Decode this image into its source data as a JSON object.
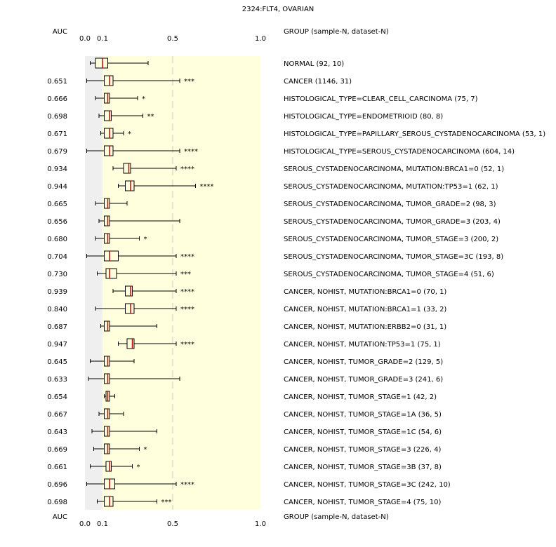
{
  "colors": {
    "background_low": "#efefef",
    "background_high": "#ffffdd",
    "box_fill": "#ffffdd",
    "median": "#cc0000",
    "significant_text": "#cc0000",
    "weak_text": "#993333",
    "normal_text": "#000000",
    "guide_line": "#c8c8c8"
  },
  "chart_data": {
    "type": "box",
    "title": "2324:FLT4, OVARIAN",
    "auc_header": "AUC",
    "group_header": "GROUP (sample-N, dataset-N)",
    "x_ticks": [
      {
        "value": 0.0,
        "label": "0.0"
      },
      {
        "value": 0.1,
        "label": "0.1"
      },
      {
        "value": 0.5,
        "label": "0.5"
      },
      {
        "value": 1.0,
        "label": "1.0"
      }
    ],
    "xlim": [
      0,
      1
    ],
    "shaded_split": 0.1,
    "guide_value": 0.5,
    "rows": [
      {
        "label": "NORMAL (92, 10)",
        "auc": "",
        "stars": "",
        "style": "normal",
        "whisker_low": 0.03,
        "q1": 0.06,
        "median": 0.1,
        "q3": 0.13,
        "whisker_high": 0.36
      },
      {
        "label": "CANCER (1146, 31)",
        "auc": "0.651",
        "stars": "***",
        "style": "sig",
        "whisker_low": 0.01,
        "q1": 0.11,
        "median": 0.14,
        "q3": 0.16,
        "whisker_high": 0.54
      },
      {
        "label": "HISTOLOGICAL_TYPE=CLEAR_CELL_CARCINOMA (75, 7)",
        "auc": "0.666",
        "stars": "*",
        "style": "weak",
        "whisker_low": 0.06,
        "q1": 0.11,
        "median": 0.13,
        "q3": 0.14,
        "whisker_high": 0.3
      },
      {
        "label": "HISTOLOGICAL_TYPE=ENDOMETRIOID (80, 8)",
        "auc": "0.698",
        "stars": "**",
        "style": "weak",
        "whisker_low": 0.08,
        "q1": 0.11,
        "median": 0.14,
        "q3": 0.15,
        "whisker_high": 0.33
      },
      {
        "label": "HISTOLOGICAL_TYPE=PAPILLARY_SEROUS_CYSTADENOCARCINOMA (53, 1)",
        "auc": "0.671",
        "stars": "*",
        "style": "weak",
        "whisker_low": 0.09,
        "q1": 0.11,
        "median": 0.14,
        "q3": 0.16,
        "whisker_high": 0.22
      },
      {
        "label": "HISTOLOGICAL_TYPE=SEROUS_CYSTADENOCARCINOMA (604, 14)",
        "auc": "0.679",
        "stars": "****",
        "style": "sig",
        "whisker_low": 0.01,
        "q1": 0.11,
        "median": 0.14,
        "q3": 0.16,
        "whisker_high": 0.54
      },
      {
        "label": "SEROUS_CYSTADENOCARCINOMA, MUTATION:BRCA1=0 (52, 1)",
        "auc": "0.934",
        "stars": "****",
        "style": "sig",
        "whisker_low": 0.16,
        "q1": 0.22,
        "median": 0.25,
        "q3": 0.26,
        "whisker_high": 0.52
      },
      {
        "label": "SEROUS_CYSTADENOCARCINOMA, MUTATION:TP53=1 (62, 1)",
        "auc": "0.944",
        "stars": "****",
        "style": "sig",
        "whisker_low": 0.19,
        "q1": 0.23,
        "median": 0.26,
        "q3": 0.28,
        "whisker_high": 0.63
      },
      {
        "label": "SEROUS_CYSTADENOCARCINOMA, TUMOR_GRADE=2 (98, 3)",
        "auc": "0.665",
        "stars": "",
        "style": "normal",
        "whisker_low": 0.06,
        "q1": 0.11,
        "median": 0.13,
        "q3": 0.14,
        "whisker_high": 0.24
      },
      {
        "label": "SEROUS_CYSTADENOCARCINOMA, TUMOR_GRADE=3 (203, 4)",
        "auc": "0.656",
        "stars": "",
        "style": "normal",
        "whisker_low": 0.08,
        "q1": 0.11,
        "median": 0.13,
        "q3": 0.14,
        "whisker_high": 0.54
      },
      {
        "label": "SEROUS_CYSTADENOCARCINOMA, TUMOR_STAGE=3 (200, 2)",
        "auc": "0.680",
        "stars": "*",
        "style": "weak",
        "whisker_low": 0.06,
        "q1": 0.11,
        "median": 0.13,
        "q3": 0.14,
        "whisker_high": 0.31
      },
      {
        "label": "SEROUS_CYSTADENOCARCINOMA, TUMOR_STAGE=3C (193, 8)",
        "auc": "0.704",
        "stars": "****",
        "style": "sig",
        "whisker_low": 0.01,
        "q1": 0.11,
        "median": 0.14,
        "q3": 0.19,
        "whisker_high": 0.52
      },
      {
        "label": "SEROUS_CYSTADENOCARCINOMA, TUMOR_STAGE=4 (51, 6)",
        "auc": "0.730",
        "stars": "***",
        "style": "sig",
        "whisker_low": 0.07,
        "q1": 0.12,
        "median": 0.14,
        "q3": 0.18,
        "whisker_high": 0.52
      },
      {
        "label": "CANCER, NOHIST, MUTATION:BRCA1=0 (70, 1)",
        "auc": "0.939",
        "stars": "****",
        "style": "sig",
        "whisker_low": 0.16,
        "q1": 0.23,
        "median": 0.26,
        "q3": 0.27,
        "whisker_high": 0.52
      },
      {
        "label": "CANCER, NOHIST, MUTATION:BRCA1=1 (33, 2)",
        "auc": "0.840",
        "stars": "****",
        "style": "sig",
        "whisker_low": 0.06,
        "q1": 0.23,
        "median": 0.26,
        "q3": 0.28,
        "whisker_high": 0.52
      },
      {
        "label": "CANCER, NOHIST, MUTATION:ERBB2=0 (31, 1)",
        "auc": "0.687",
        "stars": "",
        "style": "normal",
        "whisker_low": 0.09,
        "q1": 0.11,
        "median": 0.13,
        "q3": 0.14,
        "whisker_high": 0.41
      },
      {
        "label": "CANCER, NOHIST, MUTATION:TP53=1 (75, 1)",
        "auc": "0.947",
        "stars": "****",
        "style": "sig",
        "whisker_low": 0.19,
        "q1": 0.24,
        "median": 0.27,
        "q3": 0.28,
        "whisker_high": 0.52
      },
      {
        "label": "CANCER, NOHIST, TUMOR_GRADE=2 (129, 5)",
        "auc": "0.645",
        "stars": "",
        "style": "normal",
        "whisker_low": 0.03,
        "q1": 0.11,
        "median": 0.13,
        "q3": 0.14,
        "whisker_high": 0.28
      },
      {
        "label": "CANCER, NOHIST, TUMOR_GRADE=3 (241, 6)",
        "auc": "0.633",
        "stars": "",
        "style": "normal",
        "whisker_low": 0.02,
        "q1": 0.11,
        "median": 0.13,
        "q3": 0.14,
        "whisker_high": 0.54
      },
      {
        "label": "CANCER, NOHIST, TUMOR_STAGE=1 (42, 2)",
        "auc": "0.654",
        "stars": "",
        "style": "normal",
        "whisker_low": 0.11,
        "q1": 0.12,
        "median": 0.13,
        "q3": 0.14,
        "whisker_high": 0.17
      },
      {
        "label": "CANCER, NOHIST, TUMOR_STAGE=1A (36, 5)",
        "auc": "0.667",
        "stars": "",
        "style": "normal",
        "whisker_low": 0.08,
        "q1": 0.11,
        "median": 0.13,
        "q3": 0.14,
        "whisker_high": 0.22
      },
      {
        "label": "CANCER, NOHIST, TUMOR_STAGE=1C (54, 6)",
        "auc": "0.643",
        "stars": "",
        "style": "normal",
        "whisker_low": 0.04,
        "q1": 0.11,
        "median": 0.13,
        "q3": 0.14,
        "whisker_high": 0.41
      },
      {
        "label": "CANCER, NOHIST, TUMOR_STAGE=3 (226, 4)",
        "auc": "0.669",
        "stars": "*",
        "style": "weak",
        "whisker_low": 0.05,
        "q1": 0.11,
        "median": 0.13,
        "q3": 0.14,
        "whisker_high": 0.31
      },
      {
        "label": "CANCER, NOHIST, TUMOR_STAGE=3B (37, 8)",
        "auc": "0.661",
        "stars": "*",
        "style": "weak",
        "whisker_low": 0.03,
        "q1": 0.12,
        "median": 0.14,
        "q3": 0.15,
        "whisker_high": 0.27
      },
      {
        "label": "CANCER, NOHIST, TUMOR_STAGE=3C (242, 10)",
        "auc": "0.696",
        "stars": "****",
        "style": "sig",
        "whisker_low": 0.01,
        "q1": 0.11,
        "median": 0.14,
        "q3": 0.17,
        "whisker_high": 0.52
      },
      {
        "label": "CANCER, NOHIST, TUMOR_STAGE=4 (75, 10)",
        "auc": "0.698",
        "stars": "***",
        "style": "sig",
        "whisker_low": 0.07,
        "q1": 0.11,
        "median": 0.14,
        "q3": 0.16,
        "whisker_high": 0.41
      }
    ]
  }
}
